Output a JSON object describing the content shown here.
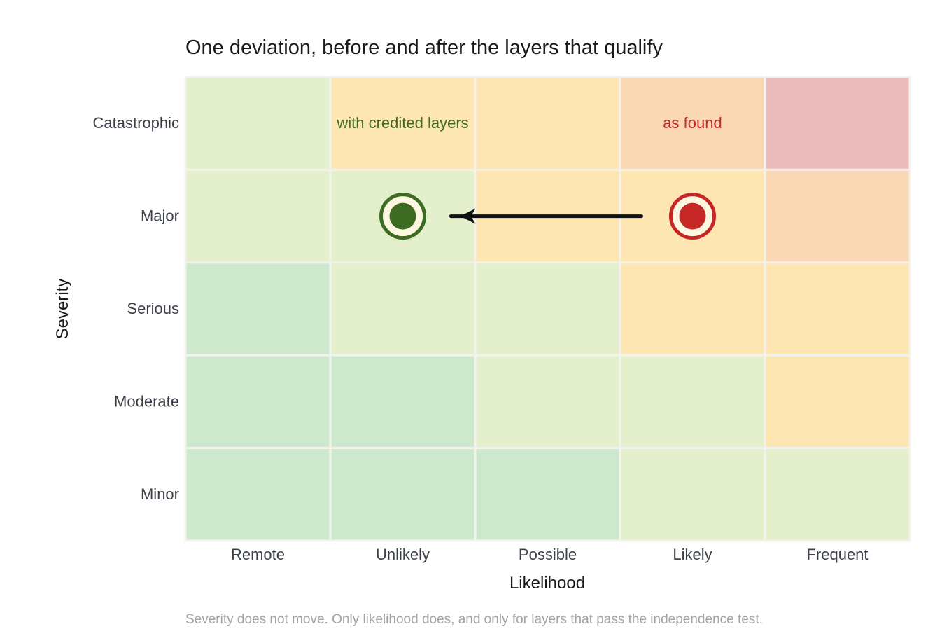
{
  "chart_data": {
    "type": "heatmap",
    "title": "One deviation, before and after the layers that qualify",
    "xlabel": "Likelihood",
    "ylabel": "Severity",
    "x_categories": [
      "Remote",
      "Unlikely",
      "Possible",
      "Likely",
      "Frequent"
    ],
    "y_categories": [
      "Catastrophic",
      "Major",
      "Serious",
      "Moderate",
      "Minor"
    ],
    "risk_levels": {
      "Catastrophic": [
        2,
        3,
        3,
        4,
        5
      ],
      "Major": [
        2,
        2,
        3,
        3,
        4
      ],
      "Serious": [
        1,
        2,
        2,
        3,
        3
      ],
      "Moderate": [
        1,
        1,
        2,
        2,
        3
      ],
      "Minor": [
        1,
        1,
        1,
        2,
        2
      ]
    },
    "level_colors": {
      "1": "#cde8cd",
      "2": "#e4f0cc",
      "3": "#fee6b3",
      "4": "#f9d7b4",
      "5": "#ecbcbc"
    },
    "points": [
      {
        "label": "as found",
        "likelihood": "Likely",
        "severity": "Major",
        "color": "#c62828"
      },
      {
        "label": "with credited layers",
        "likelihood": "Unlikely",
        "severity": "Major",
        "color": "#3d6b22"
      }
    ],
    "arrow": {
      "from": "as found",
      "to": "with credited layers",
      "color": "#111111"
    },
    "grid": false
  },
  "footnote": "Severity does not move. Only likelihood does, and only for layers that pass the independence test."
}
